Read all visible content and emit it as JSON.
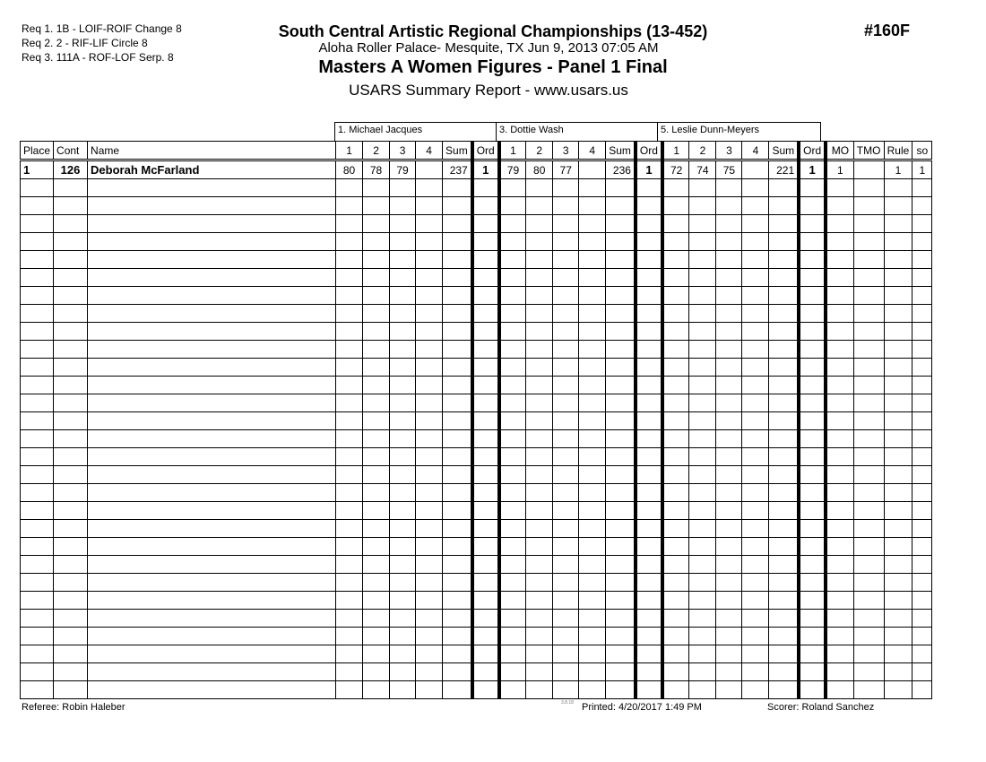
{
  "requirements": [
    "Req  1.  1B - LOIF-ROIF Change 8",
    "Req  2.  2 - RIF-LIF Circle 8",
    "Req  3.  111A - ROF-LOF Serp. 8"
  ],
  "header": {
    "title": "South Central Artistic Regional Championships (13-452)",
    "venue": "Aloha Roller Palace- Mesquite, TX  Jun 9, 2013  07:05 AM",
    "event": "Masters A Women Figures - Panel 1 Final",
    "report": "USARS Summary Report - www.usars.us",
    "event_number": "#160F"
  },
  "judges": [
    "1.  Michael Jacques",
    "3.  Dottie Wash",
    "5.  Leslie Dunn-Meyers"
  ],
  "columns": {
    "place": "Place",
    "cont": "Cont",
    "name": "Name",
    "judge_cols": [
      "1",
      "2",
      "3",
      "4",
      "Sum",
      "Ord"
    ],
    "mo": "MO",
    "tmo": "TMO",
    "rule": "Rule",
    "so": "so"
  },
  "rows": [
    {
      "place": "1",
      "cont": "126",
      "name": "Deborah McFarland",
      "judges": [
        {
          "scores": [
            "80",
            "78",
            "79",
            ""
          ],
          "sum": "237",
          "ord": "1"
        },
        {
          "scores": [
            "79",
            "80",
            "77",
            ""
          ],
          "sum": "236",
          "ord": "1"
        },
        {
          "scores": [
            "72",
            "74",
            "75",
            ""
          ],
          "sum": "221",
          "ord": "1"
        }
      ],
      "mo": "1",
      "tmo": "",
      "rule": "1",
      "so": "1"
    }
  ],
  "footer": {
    "referee": "Referee:  Robin Haleber",
    "version": "3.8.18",
    "printed": "Printed:  4/20/2017  1:49 PM",
    "scorer": "Scorer:   Roland Sanchez"
  }
}
